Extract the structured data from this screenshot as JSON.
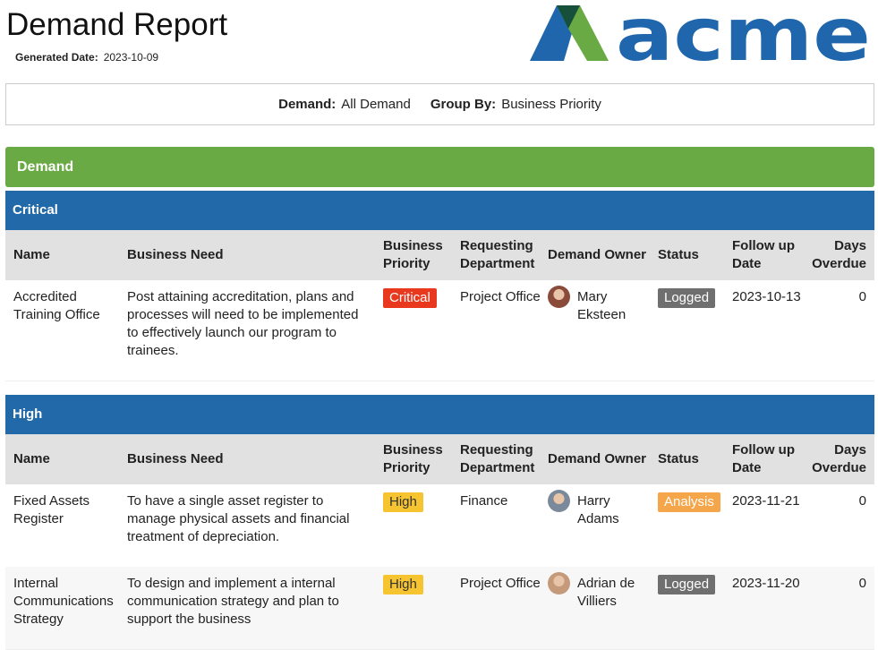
{
  "header": {
    "title": "Demand Report",
    "generated_label": "Generated Date:",
    "generated_date": "2023-10-09",
    "logo": "acme"
  },
  "filters": {
    "demand_label": "Demand:",
    "demand_value": "All Demand",
    "group_label": "Group By:",
    "group_value": "Business Priority"
  },
  "section": "Demand",
  "columns": [
    "Name",
    "Business Need",
    "Business Priority",
    "Requesting Department",
    "Demand Owner",
    "Status",
    "Follow up Date",
    "Days Overdue"
  ],
  "groups": [
    {
      "name": "Critical",
      "rows": [
        {
          "name": "Accredited Training Office",
          "need": "Post attaining accreditation, plans and processes will need to be implemented to effectively launch our program to trainees.",
          "priority": "Critical",
          "priority_color": "#e8381e",
          "department": "Project Office",
          "owner": "Mary Eksteen",
          "status": "Logged",
          "status_color": "#6f6f6f",
          "follow_up": "2023-10-13",
          "days_overdue": 0
        }
      ]
    },
    {
      "name": "High",
      "rows": [
        {
          "name": "Fixed Assets Register",
          "need": "To have a single asset register to manage physical assets and financial treatment of depreciation.",
          "priority": "High",
          "priority_color": "#f6c431",
          "department": "Finance",
          "owner": "Harry Adams",
          "status": "Analysis",
          "status_color": "#f5a54a",
          "follow_up": "2023-11-21",
          "days_overdue": 0
        },
        {
          "name": "Internal Communications Strategy",
          "need": "To design and implement  a internal communication strategy and plan to support the business",
          "priority": "High",
          "priority_color": "#f6c431",
          "department": "Project Office",
          "owner": "Adrian de Villiers",
          "status": "Logged",
          "status_color": "#6f6f6f",
          "follow_up": "2023-11-20",
          "days_overdue": 0
        }
      ]
    }
  ]
}
